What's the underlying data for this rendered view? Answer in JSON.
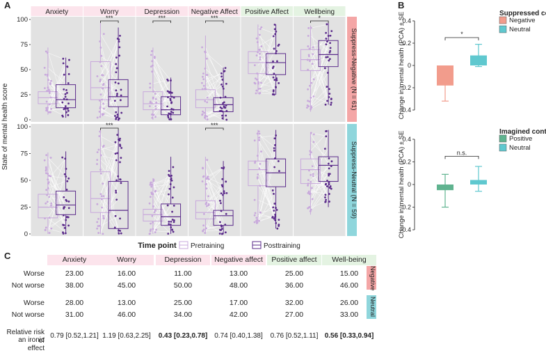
{
  "panel_labels": {
    "a": "A",
    "b": "B",
    "c": "C"
  },
  "colors": {
    "pre": "#c8a8dc",
    "post": "#5a2a8a",
    "panel_bg": "#e2e2e2",
    "mental_header": "#fce4ec",
    "positive_header": "#e4f3e2",
    "negative_side": "#f4a6a6",
    "neutral_side": "#8fd6dc",
    "bar_negative": "#f29c8c",
    "bar_neutral": "#5fc8cf",
    "bar_positive": "#5fb38f"
  },
  "chart_data": [
    {
      "type": "box",
      "id": "panel-a",
      "ylabel": "State of mental health score",
      "ylim": [
        0,
        100
      ],
      "yticks": [
        0,
        25,
        50,
        75,
        100
      ],
      "facets": [
        "Anxiety",
        "Worry",
        "Depression",
        "Negative Affect",
        "Positive Affect",
        "Wellbeing"
      ],
      "rows": [
        {
          "label": "Suppress-Negative (N = 61)",
          "boxes": [
            {
              "pre": {
                "q1": 16,
                "median": 22,
                "q3": 28,
                "low": 5,
                "high": 72
              },
              "post": {
                "q1": 12,
                "median": 20,
                "q3": 35,
                "low": 2,
                "high": 62
              },
              "sig": ""
            },
            {
              "pre": {
                "q1": 20,
                "median": 32,
                "q3": 58,
                "low": 2,
                "high": 97
              },
              "post": {
                "q1": 13,
                "median": 23,
                "q3": 40,
                "low": 0,
                "high": 92
              },
              "sig": "***"
            },
            {
              "pre": {
                "q1": 10,
                "median": 16,
                "q3": 28,
                "low": 0,
                "high": 72
              },
              "post": {
                "q1": 5,
                "median": 10,
                "q3": 23,
                "low": 0,
                "high": 42
              },
              "sig": "***"
            },
            {
              "pre": {
                "q1": 12,
                "median": 20,
                "q3": 30,
                "low": 0,
                "high": 84
              },
              "post": {
                "q1": 8,
                "median": 15,
                "q3": 22,
                "low": 0,
                "high": 52
              },
              "sig": "***"
            },
            {
              "pre": {
                "q1": 46,
                "median": 57,
                "q3": 68,
                "low": 26,
                "high": 95
              },
              "post": {
                "q1": 45,
                "median": 57,
                "q3": 66,
                "low": 25,
                "high": 95
              },
              "sig": ""
            },
            {
              "pre": {
                "q1": 49,
                "median": 60,
                "q3": 70,
                "low": 8,
                "high": 94
              },
              "post": {
                "q1": 53,
                "median": 65,
                "q3": 79,
                "low": 15,
                "high": 97
              },
              "sig": "*"
            }
          ]
        },
        {
          "label": "Suppress-Neutral (N = 59)",
          "boxes": [
            {
              "pre": {
                "q1": 15,
                "median": 25,
                "q3": 37,
                "low": 0,
                "high": 76
              },
              "post": {
                "q1": 18,
                "median": 27,
                "q3": 40,
                "low": 0,
                "high": 77
              },
              "sig": ""
            },
            {
              "pre": {
                "q1": 20,
                "median": 33,
                "q3": 58,
                "low": 0,
                "high": 97
              },
              "post": {
                "q1": 5,
                "median": 22,
                "q3": 49,
                "low": 0,
                "high": 97
              },
              "sig": "***"
            },
            {
              "pre": {
                "q1": 12,
                "median": 18,
                "q3": 23,
                "low": 0,
                "high": 52
              },
              "post": {
                "q1": 8,
                "median": 16,
                "q3": 28,
                "low": 0,
                "high": 72
              },
              "sig": ""
            },
            {
              "pre": {
                "q1": 14,
                "median": 20,
                "q3": 31,
                "low": 0,
                "high": 72
              },
              "post": {
                "q1": 8,
                "median": 17,
                "q3": 22,
                "low": 0,
                "high": 68
              },
              "sig": "***"
            },
            {
              "pre": {
                "q1": 45,
                "median": 60,
                "q3": 68,
                "low": 10,
                "high": 97
              },
              "post": {
                "q1": 44,
                "median": 57,
                "q3": 70,
                "low": 5,
                "high": 97
              },
              "sig": ""
            },
            {
              "pre": {
                "q1": 47,
                "median": 60,
                "q3": 70,
                "low": 18,
                "high": 95
              },
              "post": {
                "q1": 49,
                "median": 64,
                "q3": 72,
                "low": 25,
                "high": 97
              },
              "sig": ""
            }
          ]
        }
      ],
      "legend": {
        "title": "Time point",
        "entries": [
          "Pretraining",
          "Posttraining"
        ]
      }
    },
    {
      "type": "bar",
      "id": "panel-b-top",
      "ylabel": "Change in mental health (PCA) ± SE",
      "ylim": [
        -0.4,
        0.4
      ],
      "yticks": [
        "0.4",
        "0.2",
        "0",
        "−0.2",
        "−0.4"
      ],
      "legend_title": "Suppressed content",
      "categories": [
        "Negative",
        "Neutral"
      ],
      "values": [
        -0.18,
        0.09
      ],
      "se_low": [
        -0.32,
        -0.01
      ],
      "se_high": [
        -0.04,
        0.19
      ],
      "sig": "*"
    },
    {
      "type": "bar",
      "id": "panel-b-bottom",
      "ylabel": "Change in mental health (PCA) ± SE",
      "ylim": [
        -0.4,
        0.4
      ],
      "yticks": [
        "0.4",
        "0.2",
        "0",
        "−0.2",
        "−0.4"
      ],
      "legend_title": "Imagined content",
      "categories": [
        "Positive",
        "Neutral"
      ],
      "values": [
        -0.05,
        0.04
      ],
      "se_low": [
        -0.2,
        -0.06
      ],
      "se_high": [
        0.09,
        0.16
      ],
      "sig": "n.s."
    }
  ],
  "table": {
    "columns": [
      "Anxiety",
      "Worry",
      "Depression",
      "Negative affect",
      "Positive affect",
      "Well-being"
    ],
    "groups": [
      {
        "label": "Negative",
        "rows": [
          {
            "label": "Worse",
            "values": [
              "23.00",
              "16.00",
              "11.00",
              "13.00",
              "25.00",
              "15.00"
            ]
          },
          {
            "label": "Not worse",
            "values": [
              "38.00",
              "45.00",
              "50.00",
              "48.00",
              "36.00",
              "46.00"
            ]
          }
        ]
      },
      {
        "label": "Neutral",
        "rows": [
          {
            "label": "Worse",
            "values": [
              "28.00",
              "13.00",
              "25.00",
              "17.00",
              "32.00",
              "26.00"
            ]
          },
          {
            "label": "Not worse",
            "values": [
              "31.00",
              "46.00",
              "34.00",
              "42.00",
              "27.00",
              "33.00"
            ]
          }
        ]
      }
    ],
    "rr_label_1": "Relative risk of",
    "rr_label_2": "an ironic effect",
    "rr_values": [
      "0.79 [0.52,1.21]",
      "1.19 [0.63,2.25]",
      "0.43 [0.23,0.78]",
      "0.74 [0.40,1.38]",
      "0.76 [0.52,1.11]",
      "0.56 [0.33,0.94]"
    ],
    "rr_bold": [
      false,
      false,
      true,
      false,
      false,
      true
    ]
  }
}
